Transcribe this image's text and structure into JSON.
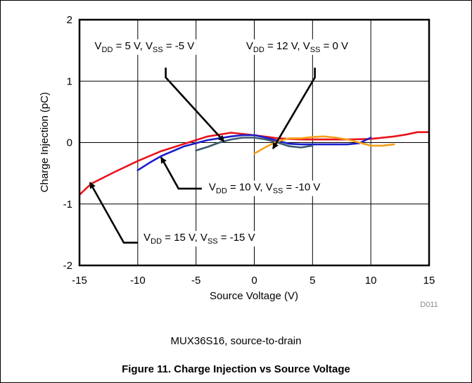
{
  "figure": {
    "note": "MUX36S16, source-to-drain",
    "title": "Figure 11.  Charge Injection vs Source Voltage",
    "id_label": "D011"
  },
  "chart_data": {
    "type": "line",
    "title": "",
    "xlabel": "Source Voltage (V)",
    "ylabel": "Charge Injection (pC)",
    "xlim": [
      -15,
      15
    ],
    "ylim": [
      -2,
      2
    ],
    "xticks": [
      "-15",
      "-10",
      "-5",
      "0",
      "5",
      "10",
      "15"
    ],
    "yticks": [
      "2",
      "1",
      "0",
      "-1",
      "-2"
    ],
    "grid": true,
    "series": [
      {
        "color": "#e8141c",
        "x": [
          -15,
          -14,
          -12,
          -10,
          -8,
          -6,
          -4,
          -2,
          0,
          2,
          4,
          6,
          8,
          10,
          12,
          13,
          14,
          15
        ],
        "y": [
          -0.85,
          -0.67,
          -0.48,
          -0.3,
          -0.14,
          -0.02,
          0.1,
          0.16,
          0.12,
          0.07,
          0.05,
          0.05,
          0.05,
          0.06,
          0.1,
          0.13,
          0.17,
          0.17
        ]
      },
      {
        "color": "#1c1ccc",
        "x": [
          -10,
          -9,
          -8,
          -6,
          -4,
          -2,
          -1,
          0,
          1,
          2,
          3,
          4,
          6,
          8,
          9,
          10
        ],
        "y": [
          -0.45,
          -0.33,
          -0.22,
          -0.06,
          0.04,
          0.1,
          0.12,
          0.12,
          0.08,
          0.03,
          -0.02,
          -0.03,
          -0.03,
          -0.03,
          -0.01,
          0.08
        ]
      },
      {
        "color": "#3c5a6e",
        "x": [
          -5,
          -4,
          -3,
          -2,
          -1,
          0,
          1,
          2,
          3,
          4,
          5
        ],
        "y": [
          -0.13,
          -0.07,
          0.0,
          0.05,
          0.08,
          0.08,
          0.05,
          0.0,
          -0.06,
          -0.08,
          -0.05
        ]
      },
      {
        "color": "#f7a01c",
        "x": [
          0,
          1,
          2,
          3,
          4,
          5,
          6,
          7,
          8,
          9,
          10,
          11,
          12
        ],
        "y": [
          -0.18,
          -0.07,
          0.02,
          0.07,
          0.07,
          0.09,
          0.1,
          0.08,
          0.05,
          0.0,
          -0.05,
          -0.05,
          -0.03
        ]
      }
    ],
    "annotations": [
      {
        "main1": "V",
        "sub1": "DD",
        "main2": " = 5 V, V",
        "sub2": "SS",
        "main3": " = -5 V",
        "text_at": [
          -13.7,
          1.52
        ],
        "line": [
          [
            -7.6,
            1.22
          ],
          [
            -7.6,
            1.06
          ],
          [
            -2.6,
            0.02
          ]
        ]
      },
      {
        "main1": "V",
        "sub1": "DD",
        "main2": " = 12 V, V",
        "sub2": "SS",
        "main3": " = 0 V",
        "text_at": [
          -0.7,
          1.52
        ],
        "line": [
          [
            5.2,
            1.22
          ],
          [
            5.2,
            1.06
          ],
          [
            1.6,
            -0.1
          ]
        ]
      },
      {
        "main1": "V",
        "sub1": "DD",
        "main2": " = 10 V, V",
        "sub2": "SS",
        "main3": " = -10 V",
        "text_at": [
          -3.9,
          -0.78
        ],
        "line": [
          [
            -4.5,
            -0.75
          ],
          [
            -6.5,
            -0.75
          ],
          [
            -8.0,
            -0.24
          ]
        ]
      },
      {
        "main1": "V",
        "sub1": "DD",
        "main2": " = 15 V, V",
        "sub2": "SS",
        "main3": " = -15 V",
        "text_at": [
          -9.5,
          -1.6
        ],
        "line": [
          [
            -10.0,
            -1.63
          ],
          [
            -11.2,
            -1.63
          ],
          [
            -14.1,
            -0.65
          ]
        ]
      }
    ]
  }
}
